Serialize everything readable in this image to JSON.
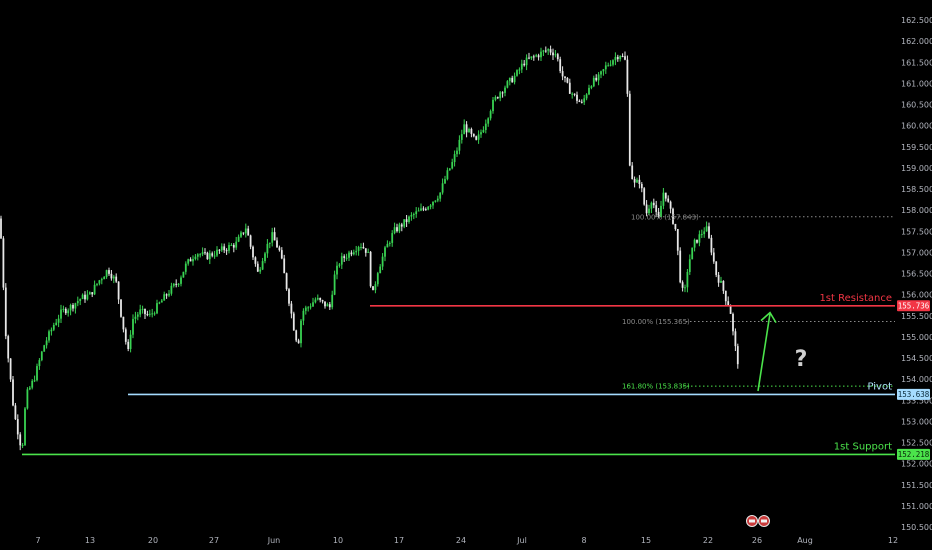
{
  "chart_data": {
    "type": "candlestick",
    "y_axis": {
      "position": "right",
      "ylim": [
        150.4,
        162.85
      ],
      "ticks": [
        150.5,
        151.0,
        151.5,
        152.0,
        152.5,
        153.0,
        153.5,
        154.0,
        154.5,
        155.0,
        155.5,
        156.0,
        156.5,
        157.0,
        157.5,
        158.0,
        158.5,
        159.0,
        159.5,
        160.0,
        160.5,
        161.0,
        161.5,
        162.0,
        162.5
      ],
      "tick_labels": [
        "150.500",
        "151.000",
        "151.500",
        "152.000",
        "152.500",
        "153.000",
        "153.500",
        "154.000",
        "154.500",
        "155.000",
        "155.500",
        "156.000",
        "156.500",
        "157.000",
        "157.500",
        "158.000",
        "158.500",
        "159.000",
        "159.500",
        "160.000",
        "160.500",
        "161.000",
        "161.500",
        "162.000",
        "162.500"
      ]
    },
    "x_axis": {
      "ticks": [
        {
          "label": "7"
        },
        {
          "label": "13"
        },
        {
          "label": "20"
        },
        {
          "label": "27"
        },
        {
          "label": "Jun"
        },
        {
          "label": "10"
        },
        {
          "label": "17"
        },
        {
          "label": "24"
        },
        {
          "label": "Jul"
        },
        {
          "label": "8"
        },
        {
          "label": "15"
        },
        {
          "label": "22"
        },
        {
          "label": "26"
        },
        {
          "label": "Aug"
        },
        {
          "label": "12"
        }
      ]
    },
    "price_path": [
      [
        0,
        157.8
      ],
      [
        6,
        155.0
      ],
      [
        14,
        153.2
      ],
      [
        22,
        152.3
      ],
      [
        26,
        153.6
      ],
      [
        34,
        154.0
      ],
      [
        44,
        154.8
      ],
      [
        54,
        155.3
      ],
      [
        62,
        155.6
      ],
      [
        70,
        155.7
      ],
      [
        80,
        155.9
      ],
      [
        90,
        156.0
      ],
      [
        98,
        156.3
      ],
      [
        108,
        156.6
      ],
      [
        116,
        156.3
      ],
      [
        122,
        155.4
      ],
      [
        128,
        154.6
      ],
      [
        132,
        155.4
      ],
      [
        140,
        155.6
      ],
      [
        150,
        155.5
      ],
      [
        160,
        155.8
      ],
      [
        170,
        156.1
      ],
      [
        178,
        156.3
      ],
      [
        186,
        156.7
      ],
      [
        196,
        157.0
      ],
      [
        206,
        156.9
      ],
      [
        216,
        157.0
      ],
      [
        226,
        157.1
      ],
      [
        236,
        157.2
      ],
      [
        246,
        157.6
      ],
      [
        252,
        157.0
      ],
      [
        258,
        156.5
      ],
      [
        264,
        157.0
      ],
      [
        272,
        157.4
      ],
      [
        280,
        157.0
      ],
      [
        288,
        156.0
      ],
      [
        294,
        155.2
      ],
      [
        298,
        154.8
      ],
      [
        302,
        155.6
      ],
      [
        308,
        155.7
      ],
      [
        316,
        155.9
      ],
      [
        322,
        155.8
      ],
      [
        330,
        155.7
      ],
      [
        334,
        156.4
      ],
      [
        340,
        156.8
      ],
      [
        350,
        157.0
      ],
      [
        360,
        157.2
      ],
      [
        368,
        157.0
      ],
      [
        372,
        155.9
      ],
      [
        378,
        156.6
      ],
      [
        386,
        157.1
      ],
      [
        394,
        157.5
      ],
      [
        404,
        157.7
      ],
      [
        414,
        157.9
      ],
      [
        422,
        158.0
      ],
      [
        432,
        158.2
      ],
      [
        440,
        158.4
      ],
      [
        446,
        158.8
      ],
      [
        452,
        159.1
      ],
      [
        458,
        159.5
      ],
      [
        464,
        160.0
      ],
      [
        470,
        159.8
      ],
      [
        476,
        159.6
      ],
      [
        484,
        160.0
      ],
      [
        492,
        160.5
      ],
      [
        500,
        160.8
      ],
      [
        508,
        161.0
      ],
      [
        516,
        161.2
      ],
      [
        524,
        161.5
      ],
      [
        532,
        161.6
      ],
      [
        540,
        161.7
      ],
      [
        548,
        161.8
      ],
      [
        556,
        161.7
      ],
      [
        562,
        161.2
      ],
      [
        568,
        160.9
      ],
      [
        574,
        160.7
      ],
      [
        582,
        160.5
      ],
      [
        590,
        161.0
      ],
      [
        598,
        161.1
      ],
      [
        606,
        161.4
      ],
      [
        614,
        161.6
      ],
      [
        620,
        161.7
      ],
      [
        626,
        161.5
      ],
      [
        628,
        160.4
      ],
      [
        630,
        159.0
      ],
      [
        634,
        158.6
      ],
      [
        640,
        158.7
      ],
      [
        646,
        157.9
      ],
      [
        652,
        158.3
      ],
      [
        658,
        157.7
      ],
      [
        664,
        158.5
      ],
      [
        670,
        158.0
      ],
      [
        676,
        157.5
      ],
      [
        680,
        156.4
      ],
      [
        684,
        155.9
      ],
      [
        688,
        156.7
      ],
      [
        694,
        157.2
      ],
      [
        700,
        157.4
      ],
      [
        706,
        157.6
      ],
      [
        712,
        157.0
      ],
      [
        716,
        156.5
      ],
      [
        722,
        156.2
      ],
      [
        726,
        155.9
      ],
      [
        730,
        155.7
      ],
      [
        734,
        154.9
      ],
      [
        738,
        154.4
      ]
    ],
    "levels": [
      {
        "name": "1st Resistance",
        "value": 155.736,
        "tag": "155.736",
        "color": "#f23645"
      },
      {
        "name": "Pivot",
        "value": 153.638,
        "tag": "153.638",
        "color": "#a5dcff"
      },
      {
        "name": "1st Support",
        "value": 152.218,
        "tag": "152.218",
        "color": "#4be34b"
      }
    ],
    "fib": [
      {
        "label": "100.00% (157.843)",
        "value": 157.843
      },
      {
        "label": "100.00% (155.365)",
        "value": 155.365
      },
      {
        "label": "161.80% (153.835)",
        "value": 153.835
      }
    ],
    "annotation": "?"
  }
}
